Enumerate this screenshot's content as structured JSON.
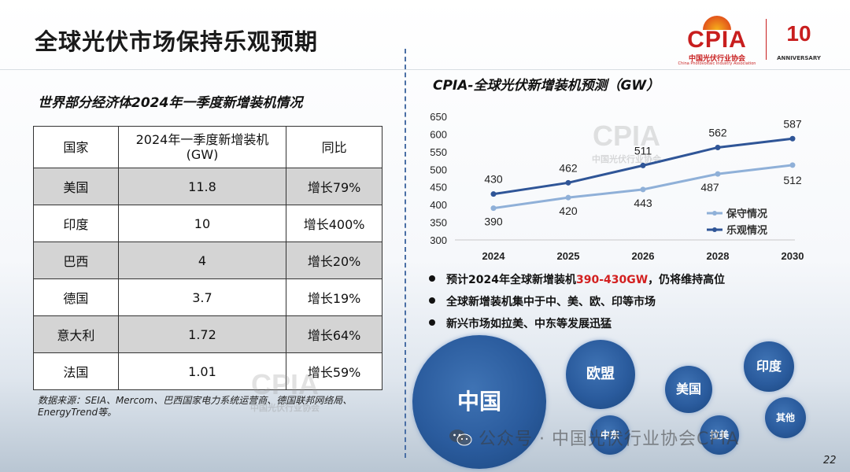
{
  "title": "全球光伏市场保持乐观预期",
  "logo": {
    "cpia_word": "CPIA",
    "cpia_cn": "中国光伏行业协会",
    "cpia_en": "China Photovoltaic Industry Association",
    "anniversary_number": "10",
    "anniversary_text": "ANNIVERSARY"
  },
  "left": {
    "subtitle": "世界部分经济体2024年一季度新增装机情况",
    "table": {
      "headers": [
        "国家",
        "2024年一季度新增装机 (GW)",
        "同比"
      ],
      "rows": [
        [
          "美国",
          "11.8",
          "增长79%"
        ],
        [
          "印度",
          "10",
          "增长400%"
        ],
        [
          "巴西",
          "4",
          "增长20%"
        ],
        [
          "德国",
          "3.7",
          "增长19%"
        ],
        [
          "意大利",
          "1.72",
          "增长64%"
        ],
        [
          "法国",
          "1.01",
          "增长59%"
        ]
      ]
    },
    "source": "数据来源：SEIA、Mercom、巴西国家电力系统运营商、德国联邦网络局、EnergyTrend等。"
  },
  "watermark": {
    "word": "CPIA",
    "cn": "中国光伏行业协会",
    "en": "China Photovoltaic Industry Association"
  },
  "right": {
    "chart_title": "CPIA-全球光伏新增装机预测（GW）",
    "bullets": {
      "b1_prefix": "预计2024年全球新增装机",
      "b1_highlight": "390-430GW",
      "b1_suffix": "，仍将维持高位",
      "b2": "全球新增装机集中于中、美、欧、印等市场",
      "b3": "新兴市场如拉美、中东等发展迅猛"
    },
    "bubbles": {
      "china": "中国",
      "europe": "欧盟",
      "usa": "美国",
      "india": "印度",
      "other": "其他",
      "middle_east": "中东",
      "latam": "拉美"
    }
  },
  "chart_data": {
    "type": "line",
    "title": "CPIA-全球光伏新增装机预测（GW）",
    "categories": [
      "2024",
      "2025",
      "2026",
      "2028",
      "2030"
    ],
    "ylim": [
      300,
      650
    ],
    "yticks": [
      300,
      350,
      400,
      450,
      500,
      550,
      600,
      650
    ],
    "series": [
      {
        "name": "保守情况",
        "values": [
          390,
          420,
          443,
          487,
          512
        ],
        "color": "#8fb0d8"
      },
      {
        "name": "乐观情况",
        "values": [
          430,
          462,
          511,
          562,
          587
        ],
        "color": "#2f5597"
      }
    ],
    "legend_position": "bottom-right",
    "grid": false
  },
  "footer": {
    "wechat_text": "公众号 · 中国光伏行业协会CPIA",
    "page_number": "22"
  }
}
